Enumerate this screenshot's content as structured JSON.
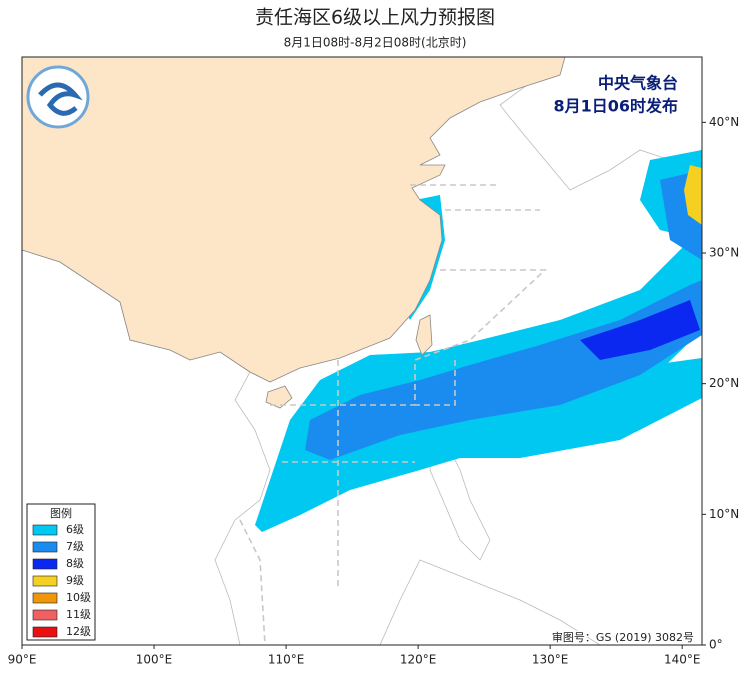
{
  "title": "责任海区6级以上风力预报图",
  "subtitle": "8月1日08时-8月2日08时(北京时)",
  "agency": "中央气象台",
  "issued": "8月1日06时发布",
  "approval": "审图号：GS (2019) 3082号",
  "legend": {
    "title": "图例",
    "items": [
      {
        "label": "6级",
        "color": "#00c8f0"
      },
      {
        "label": "7级",
        "color": "#1a8cf0"
      },
      {
        "label": "8级",
        "color": "#0a28f0"
      },
      {
        "label": "9级",
        "color": "#f5d020"
      },
      {
        "label": "10级",
        "color": "#f0960a"
      },
      {
        "label": "11级",
        "color": "#f06060"
      },
      {
        "label": "12级",
        "color": "#e81010"
      }
    ]
  },
  "map": {
    "xlim": [
      90,
      141.5
    ],
    "ylim": [
      0,
      45
    ],
    "xticks": [
      {
        "value": 90,
        "label": "90°E"
      },
      {
        "value": 100,
        "label": "100°E"
      },
      {
        "value": 110,
        "label": "110°E"
      },
      {
        "value": 120,
        "label": "120°E"
      },
      {
        "value": 130,
        "label": "130°E"
      },
      {
        "value": 140,
        "label": "140°E"
      }
    ],
    "yticks": [
      {
        "value": 0,
        "label": "0°"
      },
      {
        "value": 10,
        "label": "10°N"
      },
      {
        "value": 20,
        "label": "20°N"
      },
      {
        "value": 30,
        "label": "30°N"
      },
      {
        "value": 40,
        "label": "40°N"
      }
    ]
  }
}
